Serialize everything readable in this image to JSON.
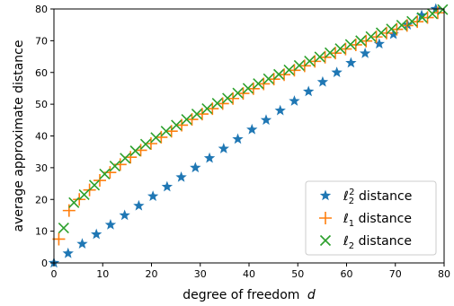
{
  "chart_data": {
    "type": "scatter",
    "title": "",
    "xlabel": "degree of freedom",
    "xlabel_var": "d",
    "ylabel": "average approximate distance",
    "xlim": [
      0,
      80
    ],
    "ylim": [
      0,
      80
    ],
    "xticks": [
      0,
      10,
      20,
      30,
      40,
      50,
      60,
      70,
      80
    ],
    "yticks": [
      0,
      10,
      20,
      30,
      40,
      50,
      60,
      70,
      80
    ],
    "grid": false,
    "legend_position": "lower-right",
    "series": [
      {
        "name": "ℓ₂² distance",
        "label_base": "ℓ",
        "label_sub": "2",
        "label_sup": "2",
        "label_rest": " distance",
        "marker": "star",
        "color": "#1f77b4",
        "x": [
          0,
          2.9,
          5.8,
          8.7,
          11.6,
          14.5,
          17.4,
          20.3,
          23.2,
          26.1,
          29.0,
          31.9,
          34.8,
          37.7,
          40.6,
          43.5,
          46.4,
          49.3,
          52.2,
          55.1,
          58.0,
          60.9,
          63.8,
          66.7,
          69.6,
          72.5,
          75.4,
          78.3
        ],
        "y": [
          0,
          3,
          6,
          9,
          12,
          15,
          18,
          21,
          24,
          27,
          30,
          33,
          36,
          39,
          42,
          45,
          48,
          51,
          54,
          57,
          60,
          63,
          66,
          69,
          72,
          75,
          78,
          80
        ]
      },
      {
        "name": "ℓ₁ distance",
        "label_base": "ℓ",
        "label_sub": "1",
        "label_sup": "",
        "label_rest": " distance",
        "marker": "plus",
        "color": "#ff7f0e",
        "x": [
          1,
          3.1,
          5.2,
          7.3,
          9.4,
          11.5,
          13.6,
          15.7,
          17.8,
          19.9,
          22.0,
          24.1,
          26.2,
          28.3,
          30.4,
          32.5,
          34.6,
          36.7,
          38.8,
          40.9,
          43.0,
          45.1,
          47.2,
          49.3,
          51.4,
          53.5,
          55.6,
          57.7,
          59.8,
          61.9,
          64.0,
          66.1,
          68.2,
          70.3,
          72.4,
          74.5,
          76.6,
          78.7
        ],
        "y": [
          7.5,
          16.5,
          20,
          23,
          26,
          28.5,
          31,
          33.3,
          35.5,
          37.6,
          39.6,
          41.5,
          43.4,
          45.2,
          46.9,
          48.6,
          50.2,
          51.8,
          53.4,
          54.9,
          56.4,
          57.9,
          59.3,
          60.7,
          62.1,
          63.5,
          64.8,
          66.1,
          67.4,
          68.7,
          69.9,
          71.2,
          72.4,
          73.6,
          74.8,
          76.0,
          77.3,
          78.8
        ]
      },
      {
        "name": "ℓ₂ distance",
        "label_base": "ℓ",
        "label_sub": "2",
        "label_sup": "",
        "label_rest": " distance",
        "marker": "x",
        "color": "#2ca02c",
        "x": [
          2,
          4.1,
          6.2,
          8.3,
          10.4,
          12.5,
          14.6,
          16.7,
          18.8,
          20.9,
          23.0,
          25.1,
          27.2,
          29.3,
          31.4,
          33.5,
          35.6,
          37.7,
          39.8,
          41.9,
          44.0,
          46.1,
          48.2,
          50.3,
          52.4,
          54.5,
          56.6,
          58.7,
          60.8,
          62.9,
          65.0,
          67.1,
          69.2,
          71.3,
          73.4,
          75.5,
          77.6,
          79.7
        ],
        "y": [
          11,
          19,
          21.5,
          24.5,
          28,
          30.5,
          33,
          35.3,
          37.4,
          39.5,
          41.5,
          43.4,
          45.2,
          46.9,
          48.6,
          50.3,
          51.9,
          53.5,
          55.0,
          56.5,
          58.0,
          59.4,
          60.8,
          62.2,
          63.6,
          64.9,
          66.2,
          67.5,
          68.8,
          70.0,
          71.3,
          72.5,
          73.7,
          74.9,
          76.1,
          77.3,
          78.5,
          79.8
        ]
      }
    ]
  }
}
